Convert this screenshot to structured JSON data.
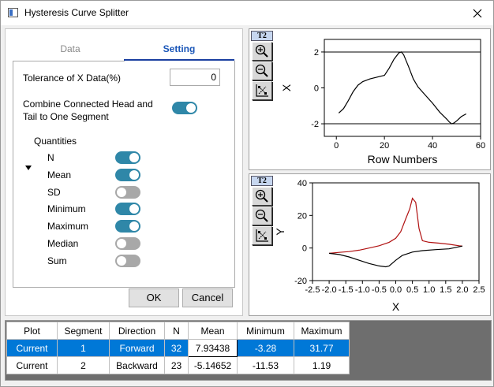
{
  "window": {
    "title": "Hysteresis Curve Splitter"
  },
  "tabs": {
    "data": "Data",
    "setting": "Setting"
  },
  "settings": {
    "tolerance_label": "Tolerance of X Data(%)",
    "tolerance_value": "0",
    "combine_label_line1": "Combine Connected Head and",
    "combine_label_line2": "Tail to One Segment",
    "combine_on": true,
    "quantities_label": "Quantities",
    "quantities": [
      {
        "label": "N",
        "on": true
      },
      {
        "label": "Mean",
        "on": true
      },
      {
        "label": "SD",
        "on": false
      },
      {
        "label": "Minimum",
        "on": true
      },
      {
        "label": "Maximum",
        "on": true
      },
      {
        "label": "Median",
        "on": false
      },
      {
        "label": "Sum",
        "on": false
      }
    ]
  },
  "buttons": {
    "ok": "OK",
    "cancel": "Cancel"
  },
  "toolbar": {
    "badge": "T2",
    "tools": [
      "zoom-in-icon",
      "zoom-out-icon",
      "rescale-icon"
    ]
  },
  "colors": {
    "accent": "#0078d7",
    "toggle_on": "#2f87a8",
    "toggle_off": "#a8a8a8",
    "curve_red": "#b01010"
  },
  "chart_data": [
    {
      "type": "line",
      "xlabel": "Row Numbers",
      "ylabel": "X",
      "xlim": [
        -5,
        60
      ],
      "ylim": [
        -2.7,
        2.7
      ],
      "xticks": [
        "0",
        "20",
        "40",
        "60"
      ],
      "yticks": [
        "2",
        "0",
        "-2"
      ],
      "hlines": [
        2,
        -2
      ],
      "series": [
        {
          "color": "#000000",
          "x": [
            1,
            3,
            5,
            7,
            9,
            11,
            14,
            17,
            20,
            22,
            24,
            26,
            27,
            28,
            30,
            32,
            34,
            37,
            40,
            43,
            46,
            47,
            48,
            49,
            50,
            52,
            54
          ],
          "y": [
            -1.4,
            -1.15,
            -0.7,
            -0.2,
            0.15,
            0.35,
            0.5,
            0.6,
            0.7,
            1.1,
            1.6,
            1.95,
            2.0,
            1.85,
            1.2,
            0.5,
            0.05,
            -0.4,
            -0.85,
            -1.35,
            -1.75,
            -1.9,
            -2.0,
            -1.95,
            -1.85,
            -1.6,
            -1.45
          ]
        }
      ]
    },
    {
      "type": "line",
      "xlabel": "X",
      "ylabel": "Y",
      "xlim": [
        -2.5,
        2.5
      ],
      "ylim": [
        -20,
        40
      ],
      "xticks": [
        "-2.5",
        "-2.0",
        "-1.5",
        "-1.0",
        "-0.5",
        "0.0",
        "0.5",
        "1.0",
        "1.5",
        "2.0",
        "2.5"
      ],
      "yticks": [
        "40",
        "20",
        "0",
        "-20"
      ],
      "series": [
        {
          "name": "Forward",
          "color": "#b01010",
          "x": [
            -2.0,
            -1.7,
            -1.4,
            -1.1,
            -0.8,
            -0.5,
            -0.2,
            0.0,
            0.15,
            0.3,
            0.42,
            0.5,
            0.6,
            0.7,
            0.8,
            1.0,
            1.3,
            1.6,
            1.9,
            2.0
          ],
          "y": [
            -3.28,
            -2.7,
            -2.2,
            -1.3,
            0.0,
            1.4,
            3.5,
            6.0,
            10.0,
            18.0,
            24.0,
            30.5,
            28.0,
            12.0,
            4.5,
            3.5,
            3.0,
            2.3,
            1.4,
            1.19
          ]
        },
        {
          "name": "Backward",
          "color": "#000000",
          "x": [
            2.0,
            1.6,
            1.2,
            0.8,
            0.5,
            0.2,
            0.0,
            -0.2,
            -0.3,
            -0.5,
            -0.8,
            -1.1,
            -1.4,
            -1.7,
            -2.0
          ],
          "y": [
            1.19,
            -0.5,
            -1.0,
            -1.6,
            -2.5,
            -4.5,
            -7.5,
            -11.0,
            -11.53,
            -11.0,
            -9.5,
            -7.5,
            -5.5,
            -4.0,
            -3.28
          ]
        }
      ]
    }
  ],
  "table": {
    "headers": [
      "Plot",
      "Segment",
      "Direction",
      "N",
      "Mean",
      "Minimum",
      "Maximum"
    ],
    "rows": [
      [
        "Current",
        "1",
        "Forward",
        "32",
        "7.93438",
        "-3.28",
        "31.77"
      ],
      [
        "Current",
        "2",
        "Backward",
        "23",
        "-5.14652",
        "-11.53",
        "1.19"
      ]
    ]
  }
}
